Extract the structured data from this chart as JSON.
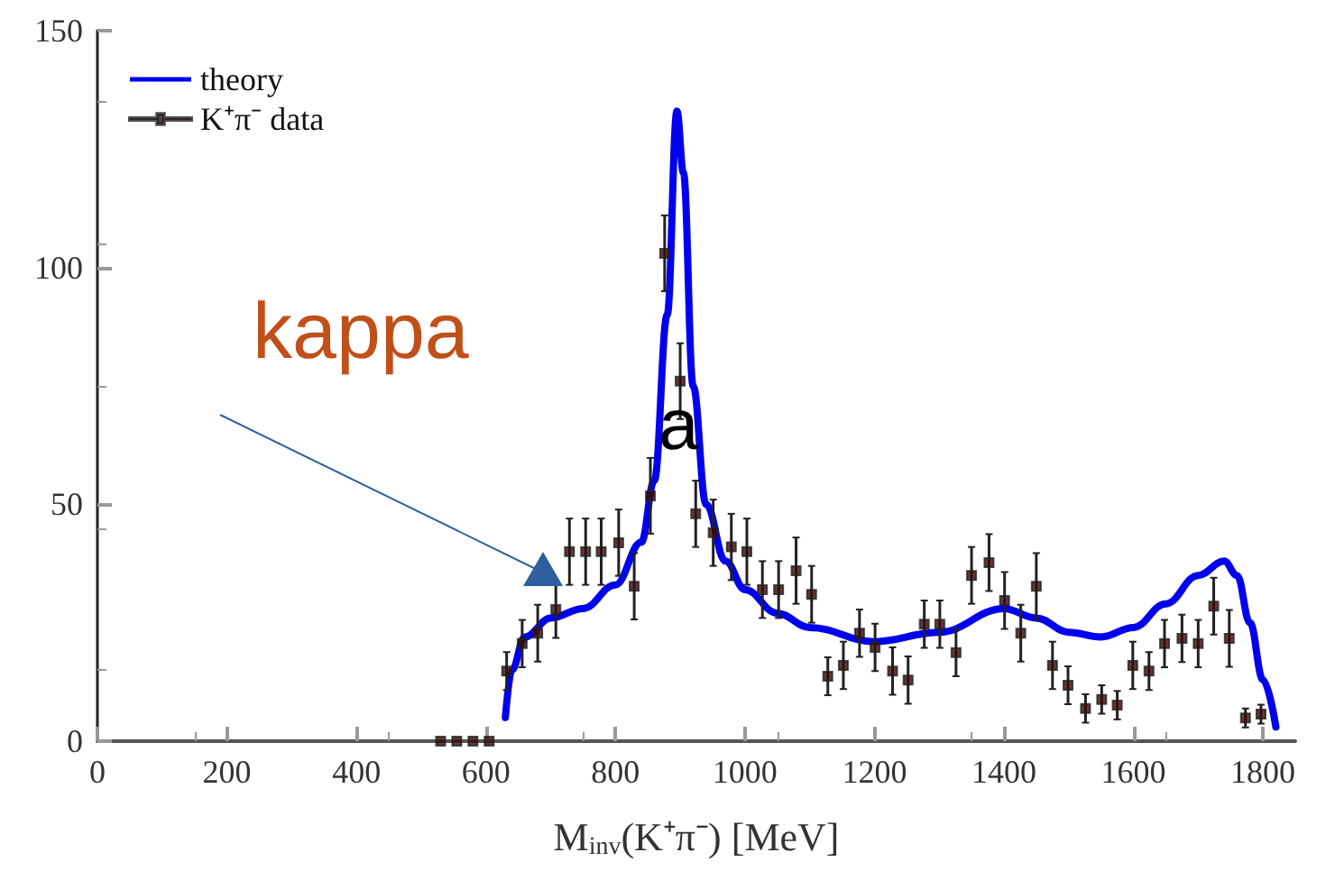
{
  "chart_data": {
    "type": "scatter",
    "xlabel": "M$_{inv}$(K⁺π⁻) [MeV]",
    "xlim": [
      0,
      1850
    ],
    "xticks": [
      0,
      200,
      400,
      600,
      800,
      1000,
      1200,
      1400,
      1600,
      1800
    ],
    "ylim": [
      0,
      150
    ],
    "yticks": [
      0,
      50,
      100,
      150
    ],
    "grid": false,
    "legend": "top left",
    "annotations": [
      "kappa",
      "a"
    ],
    "series": [
      {
        "name": "theory",
        "type": "line",
        "color": "#0000ee",
        "line_style": "solid",
        "x": [
          630,
          640,
          660,
          700,
          750,
          800,
          840,
          860,
          880,
          895,
          905,
          920,
          940,
          970,
          1000,
          1050,
          1100,
          1200,
          1300,
          1400,
          1450,
          1500,
          1550,
          1600,
          1650,
          1700,
          1740,
          1760,
          1780,
          1800,
          1820
        ],
        "values": [
          5,
          15,
          22,
          26,
          28,
          33,
          42,
          55,
          90,
          133,
          120,
          75,
          50,
          38,
          32,
          27,
          24,
          21,
          23,
          28,
          26,
          23,
          22,
          24,
          29,
          35,
          38,
          35,
          25,
          13,
          3
        ]
      },
      {
        "name": "K⁺π⁻ data",
        "marker": "square",
        "color": "#3a0a0a",
        "x": [
          530,
          555,
          580,
          605,
          632,
          656,
          680,
          708,
          729,
          754,
          778,
          805,
          829,
          854,
          876,
          900,
          924,
          951,
          979,
          1003,
          1027,
          1052,
          1079,
          1103,
          1128,
          1152,
          1177,
          1201,
          1228,
          1252,
          1277,
          1301,
          1326,
          1350,
          1377,
          1401,
          1426,
          1450,
          1475,
          1499,
          1526,
          1551,
          1575,
          1599,
          1624,
          1648,
          1675,
          1700,
          1724,
          1748,
          1773,
          1797
        ],
        "values": [
          0,
          0,
          0,
          0,
          14.8,
          20.6,
          22.8,
          27.8,
          40,
          40,
          40,
          41.9,
          32.7,
          51.8,
          103,
          76,
          48,
          44,
          41,
          40,
          32,
          32,
          36,
          31,
          13.7,
          16,
          22.8,
          19.8,
          14.8,
          12.9,
          24.7,
          24.7,
          18.7,
          35,
          37.7,
          29.7,
          22.8,
          32.7,
          16,
          11.8,
          6.9,
          8.8,
          7.6,
          16,
          14.8,
          20.6,
          21.7,
          20.6,
          28.5,
          21.7,
          4.9,
          5.7
        ],
        "errors": [
          null,
          null,
          null,
          null,
          4,
          5,
          6,
          6,
          7,
          7,
          7,
          7,
          7,
          8,
          8,
          8,
          7,
          7,
          7,
          7,
          6,
          6,
          7,
          6,
          4,
          5,
          5,
          5,
          5,
          5,
          5,
          5,
          5,
          6,
          6,
          6,
          6,
          7,
          5,
          4,
          3,
          3,
          3,
          5,
          4,
          5,
          5,
          5,
          6,
          6,
          2,
          2
        ]
      }
    ]
  }
}
